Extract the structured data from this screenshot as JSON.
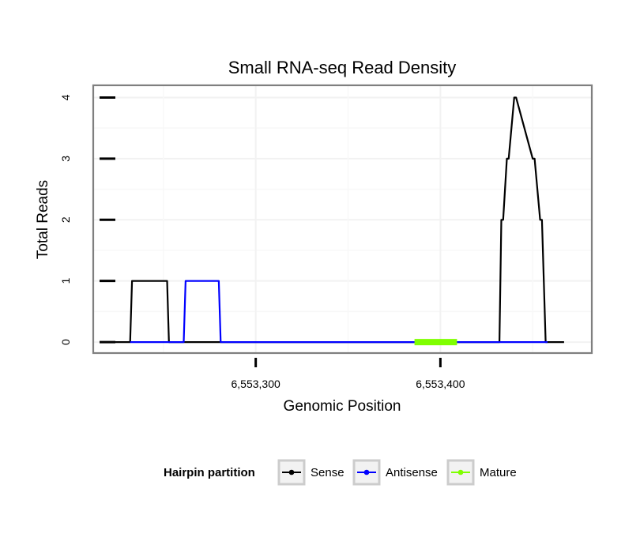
{
  "chart_data": {
    "type": "line",
    "title": "Small RNA-seq Read Density",
    "xlabel": "Genomic Position",
    "ylabel": "Total Reads",
    "xlim": [
      6553212,
      6553482
    ],
    "ylim": [
      -0.18,
      4.2
    ],
    "x_ticks": [
      6553300,
      6553400
    ],
    "x_tick_labels": [
      "6,553,300",
      "6,553,400"
    ],
    "y_ticks": [
      0,
      1,
      2,
      3,
      4
    ],
    "y_tick_labels": [
      "0",
      "1",
      "2",
      "3",
      "4"
    ],
    "grid": true,
    "legend": {
      "title": "Hairpin partition",
      "position": "bottom",
      "entries": [
        "Sense",
        "Antisense",
        "Mature"
      ]
    },
    "series": [
      {
        "name": "Sense",
        "color": "#000000",
        "x": [
          6553224,
          6553232,
          6553233,
          6553252,
          6553253,
          6553432,
          6553433,
          6553434,
          6553436,
          6553437,
          6553440,
          6553441,
          6553450,
          6553451,
          6553454,
          6553455,
          6553457,
          6553458,
          6553461,
          6553467
        ],
        "y": [
          0,
          0,
          1,
          1,
          0,
          0,
          2,
          2,
          3,
          3,
          4,
          4,
          3,
          3,
          2,
          2,
          0,
          0,
          0,
          0
        ]
      },
      {
        "name": "Antisense",
        "color": "#0000ff",
        "x": [
          6553232,
          6553261,
          6553262,
          6553280,
          6553281,
          6553432,
          6553458
        ],
        "y": [
          0,
          0,
          1,
          1,
          0,
          0,
          0
        ]
      },
      {
        "name": "Mature",
        "color": "#7fff00",
        "x": [
          6553386,
          6553409
        ],
        "y": [
          0,
          0
        ]
      }
    ]
  }
}
